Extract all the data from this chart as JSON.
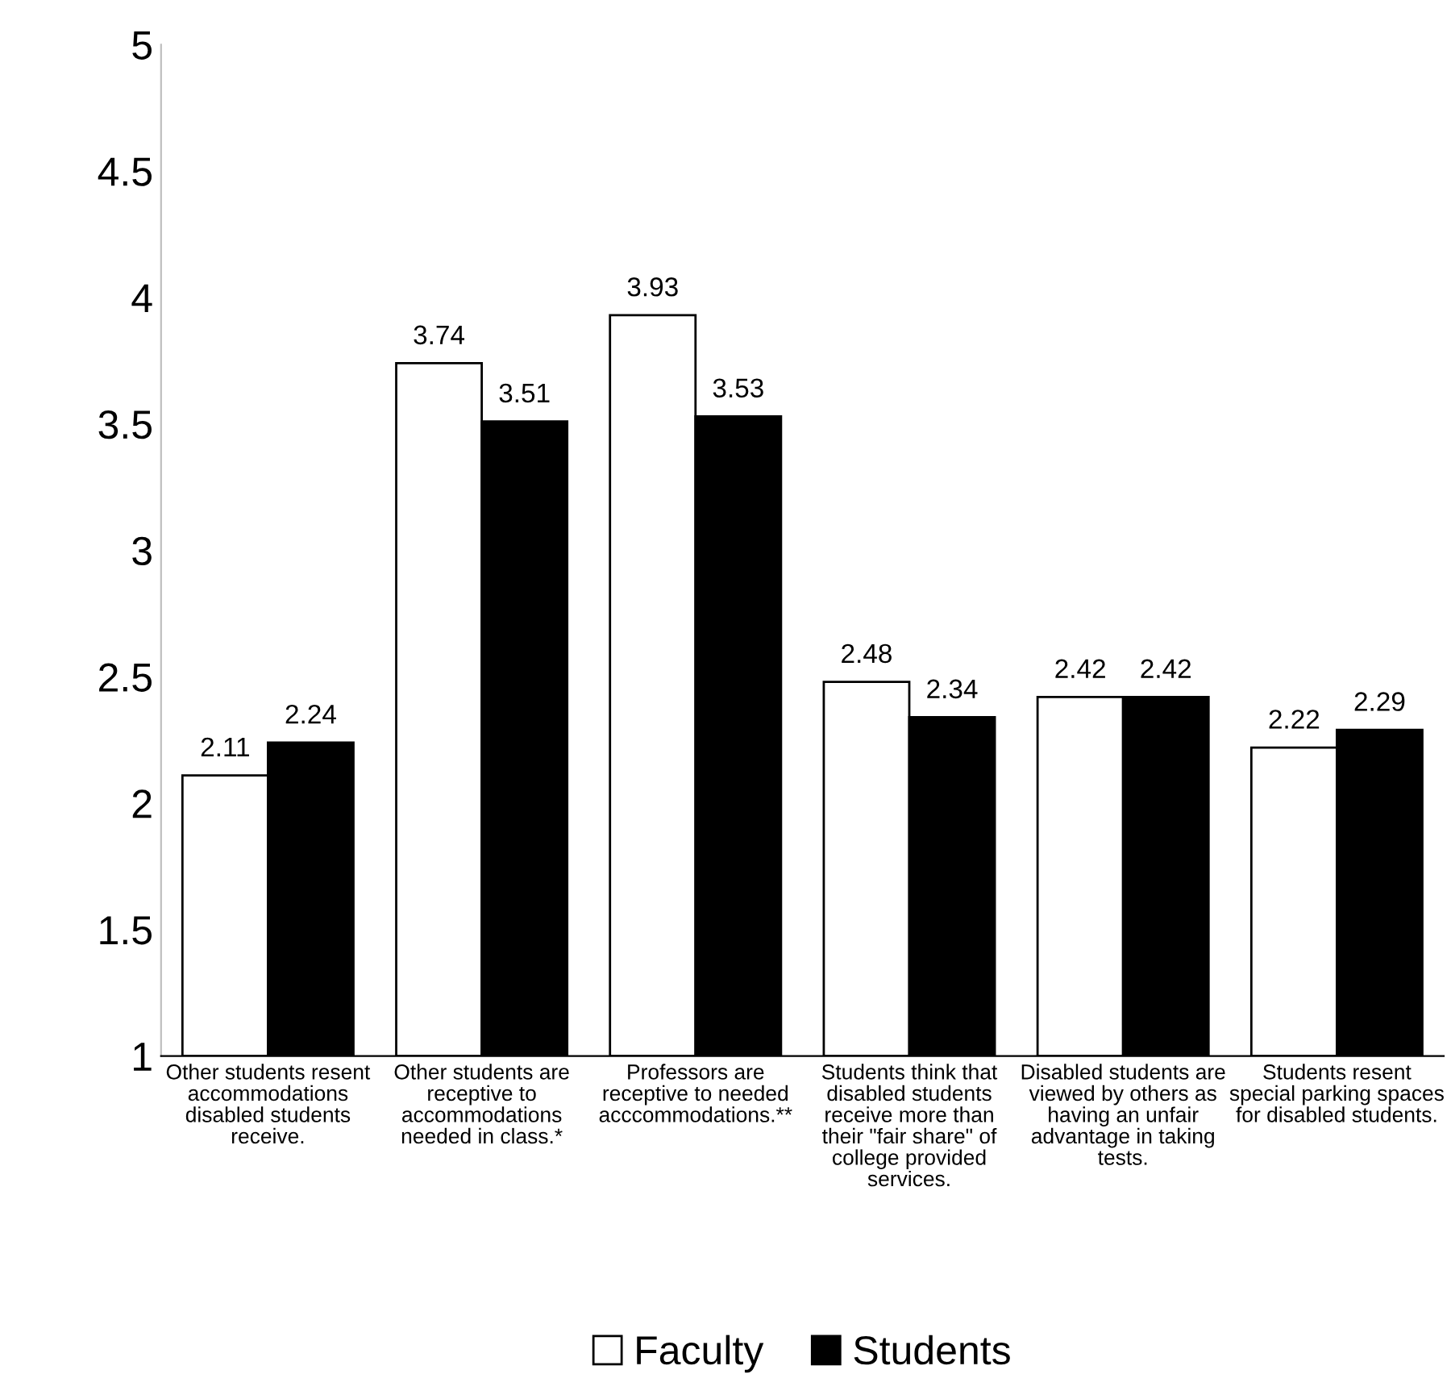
{
  "chart_data": {
    "type": "bar",
    "categories": [
      "Other students resent\naccommodations\ndisabled students\nreceive.",
      "Other students are\nreceptive to\naccommodations\nneeded in class.*",
      "Professors are\nreceptive to needed\nacccommodations.**",
      "Students think that\ndisabled students\nreceive more than\ntheir \"fair share\" of\ncollege provided\nservices.",
      "Disabled students are\nviewed by others as\nhaving an unfair\nadvantage in taking\ntests.",
      "Students resent\nspecial parking spaces\nfor disabled students."
    ],
    "series": [
      {
        "name": "Faculty",
        "color": "#ffffff",
        "values": [
          2.11,
          3.74,
          3.93,
          2.48,
          2.42,
          2.22
        ]
      },
      {
        "name": "Students",
        "color": "#000000",
        "values": [
          2.24,
          3.51,
          3.53,
          2.34,
          2.42,
          2.29
        ]
      }
    ],
    "ylim": [
      1,
      5
    ],
    "yticks": [
      1,
      1.5,
      2,
      2.5,
      3,
      3.5,
      4,
      4.5,
      5
    ],
    "data_labels": true,
    "grid": false,
    "legend": "bottom"
  }
}
